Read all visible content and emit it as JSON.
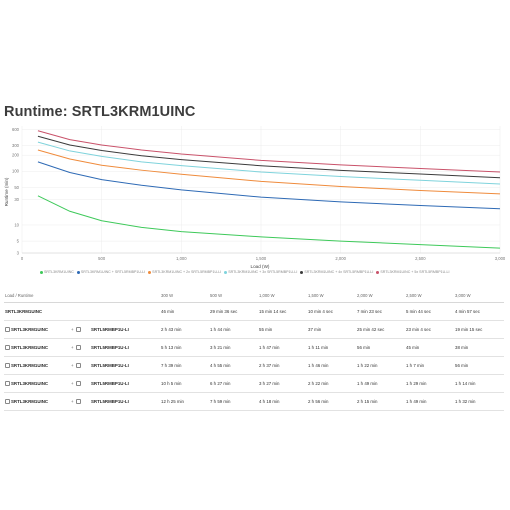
{
  "page": {
    "title": "Runtime: SRTL3KRM1UINC"
  },
  "chart_data": {
    "type": "line",
    "xlabel": "Load (W)",
    "ylabel": "Runtime (min)",
    "y_scale": "log",
    "xlim": [
      0,
      3000
    ],
    "ylim": [
      3,
      700
    ],
    "x_ticks": [
      "0",
      "500",
      "1,000",
      "1,500",
      "2,000",
      "2,500",
      "3,000"
    ],
    "y_ticks": [
      "600",
      "300",
      "200",
      "100",
      "50",
      "30",
      "10",
      "5",
      "3"
    ],
    "grid": true,
    "legend_position": "bottom",
    "series": [
      {
        "name": "SRTL3KRM1UINC",
        "color": "#3ec95a",
        "x": [
          100,
          300,
          500,
          750,
          1000,
          1500,
          2000,
          2500,
          3000
        ],
        "y": [
          35,
          18,
          12,
          9,
          7.5,
          6,
          5,
          4.3,
          3.7
        ]
      },
      {
        "name": "SRTL3KRM1UINC + SRTL5RMBP1U-LI",
        "color": "#2e6ab5",
        "x": [
          100,
          300,
          500,
          750,
          1000,
          1500,
          2000,
          2500,
          3000
        ],
        "y": [
          150,
          95,
          70,
          55,
          45,
          33,
          27,
          23,
          20
        ]
      },
      {
        "name": "SRTL3KRM1UINC + 2x SRTL5RMBP1U-LI",
        "color": "#ef8b3c",
        "x": [
          100,
          300,
          500,
          750,
          1000,
          1500,
          2000,
          2500,
          3000
        ],
        "y": [
          250,
          170,
          130,
          105,
          88,
          65,
          52,
          44,
          38
        ]
      },
      {
        "name": "SRTL3KRM1UINC + 3x SRTL5RMBP1U-LI",
        "color": "#7fd3dc",
        "x": [
          100,
          300,
          500,
          750,
          1000,
          1500,
          2000,
          2500,
          3000
        ],
        "y": [
          350,
          240,
          190,
          150,
          128,
          97,
          80,
          68,
          58
        ]
      },
      {
        "name": "SRTL3KRM1UINC + 4x SRTL5RMBP1U-LI",
        "color": "#3b3b3b",
        "x": [
          100,
          300,
          500,
          750,
          1000,
          1500,
          2000,
          2500,
          3000
        ],
        "y": [
          450,
          310,
          245,
          195,
          165,
          127,
          104,
          89,
          76
        ]
      },
      {
        "name": "SRTL3KRM1UINC + 5x SRTL5RMBP1U-LI",
        "color": "#c9526a",
        "x": [
          100,
          300,
          500,
          750,
          1000,
          1500,
          2000,
          2500,
          3000
        ],
        "y": [
          570,
          390,
          310,
          250,
          210,
          160,
          132,
          113,
          97
        ]
      }
    ]
  },
  "table": {
    "headers": [
      "Load / Runtime",
      "",
      "",
      "300 W",
      "500 W",
      "1,000 W",
      "1,500 W",
      "2,000 W",
      "2,500 W",
      "3,000 W"
    ],
    "rows": [
      {
        "model": "SRTL3KRM1UINC",
        "battery": "",
        "values": [
          "46 min",
          "29 min 36 sec",
          "15 min 14 sec",
          "10 min 4 sec",
          "7 min 23 sec",
          "5 min 44 sec",
          "4 min 57 sec"
        ]
      },
      {
        "model": "SRTL3KRM1UINC",
        "battery": "SRTL5RMBP1U-LI",
        "values": [
          "2 h 43 min",
          "1 h 44 min",
          "55 min",
          "37 min",
          "25 min 42 sec",
          "23 min 4 sec",
          "19 min 15 sec"
        ]
      },
      {
        "model": "SRTL3KRM1UINC",
        "battery": "SRTL5RMBP1U-LI",
        "values": [
          "5 h 13 min",
          "3 h 21 min",
          "1 h 47 min",
          "1 h 11 min",
          "56 min",
          "45 min",
          "38 min"
        ]
      },
      {
        "model": "SRTL3KRM1UINC",
        "battery": "SRTL5RMBP1U-LI",
        "values": [
          "7 h 39 min",
          "4 h 55 min",
          "2 h 37 min",
          "1 h 46 min",
          "1 h 22 min",
          "1 h 7 min",
          "56 min"
        ]
      },
      {
        "model": "SRTL3KRM1UINC",
        "battery": "SRTL5RMBP1U-LI",
        "values": [
          "10 h 5 min",
          "6 h 27 min",
          "3 h 27 min",
          "2 h 22 min",
          "1 h 49 min",
          "1 h 29 min",
          "1 h 14 min"
        ]
      },
      {
        "model": "SRTL3KRM1UINC",
        "battery": "SRTL5RMBP1U-LI",
        "values": [
          "12 h 25 min",
          "7 h 59 min",
          "4 h 18 min",
          "2 h 56 min",
          "2 h 15 min",
          "1 h 49 min",
          "1 h 32 min"
        ]
      }
    ]
  }
}
